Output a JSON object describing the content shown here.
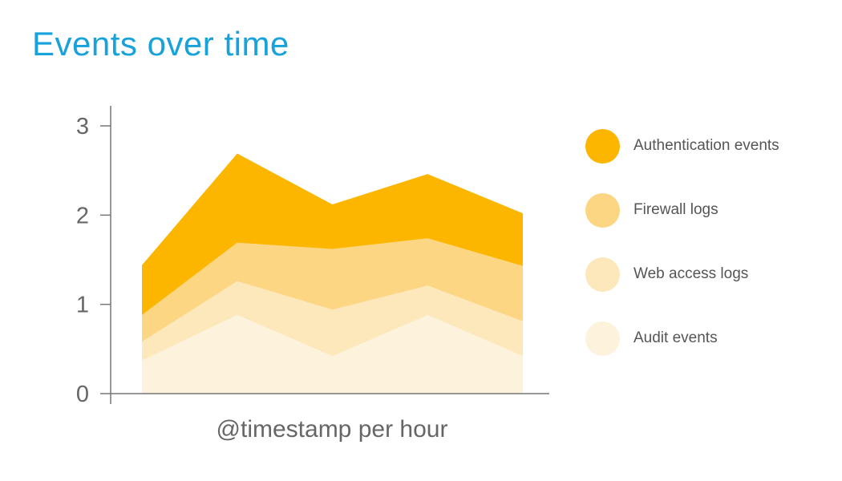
{
  "title": "Events over time",
  "colors": {
    "title": "#17a2dc",
    "axis": "#777777",
    "tick_label": "#666666"
  },
  "chart_data": {
    "type": "area",
    "stacked": true,
    "title": "Events over time",
    "xlabel": "@timestamp per hour",
    "ylabel": "",
    "ylim": [
      0,
      3
    ],
    "yticks": [
      0,
      1,
      2,
      3
    ],
    "x": [
      1,
      2,
      3,
      4,
      5
    ],
    "grid": false,
    "legend_position": "right",
    "series": [
      {
        "name": "Audit events",
        "color": "#fdf3dd",
        "values": [
          0.37,
          0.88,
          0.42,
          0.88,
          0.42
        ]
      },
      {
        "name": "Web access logs",
        "color": "#fde8bc",
        "values": [
          0.21,
          0.38,
          0.52,
          0.33,
          0.39
        ]
      },
      {
        "name": "Firewall logs",
        "color": "#fdd683",
        "values": [
          0.3,
          0.43,
          0.68,
          0.53,
          0.62
        ]
      },
      {
        "name": "Authentication events",
        "color": "#fdb600",
        "values": [
          0.56,
          1.0,
          0.5,
          0.72,
          0.59
        ]
      }
    ]
  },
  "legend": [
    {
      "label": "Authentication events",
      "color": "#fdb600"
    },
    {
      "label": "Firewall logs",
      "color": "#fdd683"
    },
    {
      "label": "Web access logs",
      "color": "#fde8bc"
    },
    {
      "label": "Audit events",
      "color": "#fdf3dd"
    }
  ]
}
